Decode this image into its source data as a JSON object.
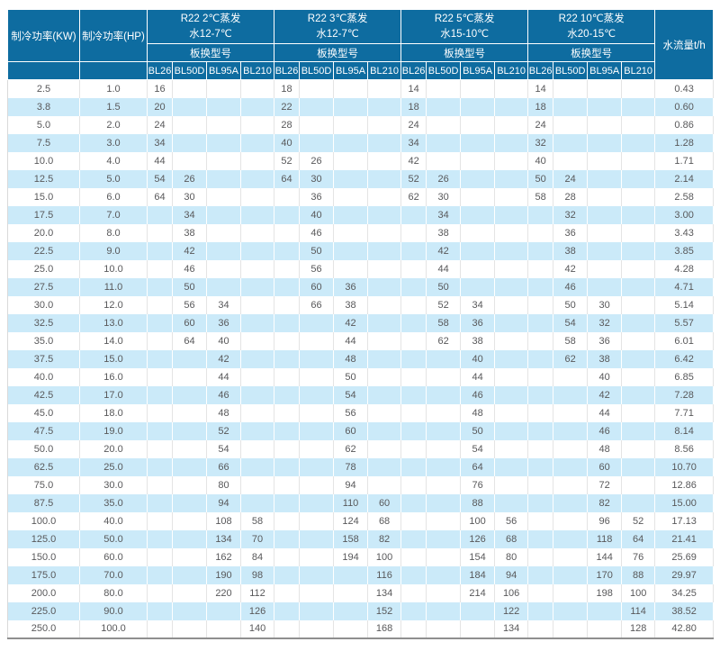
{
  "colors": {
    "header_bg": "#0E6CA0",
    "stripe_bg": "#CBEAF9",
    "header_text": "#FFFFFF",
    "body_text": "#58585A",
    "grid_line": "#E4E4E4",
    "bottom_border": "#8F8F8F",
    "outer_border": "#D9D9D9"
  },
  "header": {
    "kw": "制冷功率(KW)",
    "hp": "制冷功率(HP)",
    "flow": "水流量t/h",
    "groups": [
      {
        "line1": "R22 2℃蒸发",
        "line2": "水12-7℃",
        "subtitle": "板换型号",
        "models": [
          "BL26",
          "BL50D",
          "BL95A",
          "BL210"
        ]
      },
      {
        "line1": "R22 3℃蒸发",
        "line2": "水12-7℃",
        "subtitle": "板换型号",
        "models": [
          "BL26",
          "BL50D",
          "BL95A",
          "BL210"
        ]
      },
      {
        "line1": "R22 5℃蒸发",
        "line2": "水15-10℃",
        "subtitle": "板换型号",
        "models": [
          "BL26",
          "BL50D",
          "BL95A",
          "BL210"
        ]
      },
      {
        "line1": "R22 10℃蒸发",
        "line2": "水20-15℃",
        "subtitle": "板换型号",
        "models": [
          "BL26",
          "BL50D",
          "BL95A",
          "BL210"
        ]
      }
    ]
  },
  "body": {
    "rows": [
      [
        "2.5",
        "1.0",
        "16",
        "",
        "",
        "",
        "18",
        "",
        "",
        "",
        "14",
        "",
        "",
        "",
        "14",
        "",
        "",
        "",
        "0.43"
      ],
      [
        "3.8",
        "1.5",
        "20",
        "",
        "",
        "",
        "22",
        "",
        "",
        "",
        "18",
        "",
        "",
        "",
        "18",
        "",
        "",
        "",
        "0.60"
      ],
      [
        "5.0",
        "2.0",
        "24",
        "",
        "",
        "",
        "28",
        "",
        "",
        "",
        "24",
        "",
        "",
        "",
        "24",
        "",
        "",
        "",
        "0.86"
      ],
      [
        "7.5",
        "3.0",
        "34",
        "",
        "",
        "",
        "40",
        "",
        "",
        "",
        "34",
        "",
        "",
        "",
        "32",
        "",
        "",
        "",
        "1.28"
      ],
      [
        "10.0",
        "4.0",
        "44",
        "",
        "",
        "",
        "52",
        "26",
        "",
        "",
        "42",
        "",
        "",
        "",
        "40",
        "",
        "",
        "",
        "1.71"
      ],
      [
        "12.5",
        "5.0",
        "54",
        "26",
        "",
        "",
        "64",
        "30",
        "",
        "",
        "52",
        "26",
        "",
        "",
        "50",
        "24",
        "",
        "",
        "2.14"
      ],
      [
        "15.0",
        "6.0",
        "64",
        "30",
        "",
        "",
        "",
        "36",
        "",
        "",
        "62",
        "30",
        "",
        "",
        "58",
        "28",
        "",
        "",
        "2.58"
      ],
      [
        "17.5",
        "7.0",
        "",
        "34",
        "",
        "",
        "",
        "40",
        "",
        "",
        "",
        "34",
        "",
        "",
        "",
        "32",
        "",
        "",
        "3.00"
      ],
      [
        "20.0",
        "8.0",
        "",
        "38",
        "",
        "",
        "",
        "46",
        "",
        "",
        "",
        "38",
        "",
        "",
        "",
        "36",
        "",
        "",
        "3.43"
      ],
      [
        "22.5",
        "9.0",
        "",
        "42",
        "",
        "",
        "",
        "50",
        "",
        "",
        "",
        "42",
        "",
        "",
        "",
        "38",
        "",
        "",
        "3.85"
      ],
      [
        "25.0",
        "10.0",
        "",
        "46",
        "",
        "",
        "",
        "56",
        "",
        "",
        "",
        "44",
        "",
        "",
        "",
        "42",
        "",
        "",
        "4.28"
      ],
      [
        "27.5",
        "11.0",
        "",
        "50",
        "",
        "",
        "",
        "60",
        "36",
        "",
        "",
        "50",
        "",
        "",
        "",
        "46",
        "",
        "",
        "4.71"
      ],
      [
        "30.0",
        "12.0",
        "",
        "56",
        "34",
        "",
        "",
        "66",
        "38",
        "",
        "",
        "52",
        "34",
        "",
        "",
        "50",
        "30",
        "",
        "5.14"
      ],
      [
        "32.5",
        "13.0",
        "",
        "60",
        "36",
        "",
        "",
        "",
        "42",
        "",
        "",
        "58",
        "36",
        "",
        "",
        "54",
        "32",
        "",
        "5.57"
      ],
      [
        "35.0",
        "14.0",
        "",
        "64",
        "40",
        "",
        "",
        "",
        "44",
        "",
        "",
        "62",
        "38",
        "",
        "",
        "58",
        "36",
        "",
        "6.01"
      ],
      [
        "37.5",
        "15.0",
        "",
        "",
        "42",
        "",
        "",
        "",
        "48",
        "",
        "",
        "",
        "40",
        "",
        "",
        "62",
        "38",
        "",
        "6.42"
      ],
      [
        "40.0",
        "16.0",
        "",
        "",
        "44",
        "",
        "",
        "",
        "50",
        "",
        "",
        "",
        "44",
        "",
        "",
        "",
        "40",
        "",
        "6.85"
      ],
      [
        "42.5",
        "17.0",
        "",
        "",
        "46",
        "",
        "",
        "",
        "54",
        "",
        "",
        "",
        "46",
        "",
        "",
        "",
        "42",
        "",
        "7.28"
      ],
      [
        "45.0",
        "18.0",
        "",
        "",
        "48",
        "",
        "",
        "",
        "56",
        "",
        "",
        "",
        "48",
        "",
        "",
        "",
        "44",
        "",
        "7.71"
      ],
      [
        "47.5",
        "19.0",
        "",
        "",
        "52",
        "",
        "",
        "",
        "60",
        "",
        "",
        "",
        "50",
        "",
        "",
        "",
        "46",
        "",
        "8.14"
      ],
      [
        "50.0",
        "20.0",
        "",
        "",
        "54",
        "",
        "",
        "",
        "62",
        "",
        "",
        "",
        "54",
        "",
        "",
        "",
        "48",
        "",
        "8.56"
      ],
      [
        "62.5",
        "25.0",
        "",
        "",
        "66",
        "",
        "",
        "",
        "78",
        "",
        "",
        "",
        "64",
        "",
        "",
        "",
        "60",
        "",
        "10.70"
      ],
      [
        "75.0",
        "30.0",
        "",
        "",
        "80",
        "",
        "",
        "",
        "94",
        "",
        "",
        "",
        "76",
        "",
        "",
        "",
        "72",
        "",
        "12.86"
      ],
      [
        "87.5",
        "35.0",
        "",
        "",
        "94",
        "",
        "",
        "",
        "110",
        "60",
        "",
        "",
        "88",
        "",
        "",
        "",
        "82",
        "",
        "15.00"
      ],
      [
        "100.0",
        "40.0",
        "",
        "",
        "108",
        "58",
        "",
        "",
        "124",
        "68",
        "",
        "",
        "100",
        "56",
        "",
        "",
        "96",
        "52",
        "17.13"
      ],
      [
        "125.0",
        "50.0",
        "",
        "",
        "134",
        "70",
        "",
        "",
        "158",
        "82",
        "",
        "",
        "126",
        "68",
        "",
        "",
        "118",
        "64",
        "21.41"
      ],
      [
        "150.0",
        "60.0",
        "",
        "",
        "162",
        "84",
        "",
        "",
        "194",
        "100",
        "",
        "",
        "154",
        "80",
        "",
        "",
        "144",
        "76",
        "25.69"
      ],
      [
        "175.0",
        "70.0",
        "",
        "",
        "190",
        "98",
        "",
        "",
        "",
        "116",
        "",
        "",
        "184",
        "94",
        "",
        "",
        "170",
        "88",
        "29.97"
      ],
      [
        "200.0",
        "80.0",
        "",
        "",
        "220",
        "112",
        "",
        "",
        "",
        "134",
        "",
        "",
        "214",
        "106",
        "",
        "",
        "198",
        "100",
        "34.25"
      ],
      [
        "225.0",
        "90.0",
        "",
        "",
        "",
        "126",
        "",
        "",
        "",
        "152",
        "",
        "",
        "",
        "122",
        "",
        "",
        "",
        "114",
        "38.52"
      ],
      [
        "250.0",
        "100.0",
        "",
        "",
        "",
        "140",
        "",
        "",
        "",
        "168",
        "",
        "",
        "",
        "134",
        "",
        "",
        "",
        "128",
        "42.80"
      ]
    ]
  }
}
